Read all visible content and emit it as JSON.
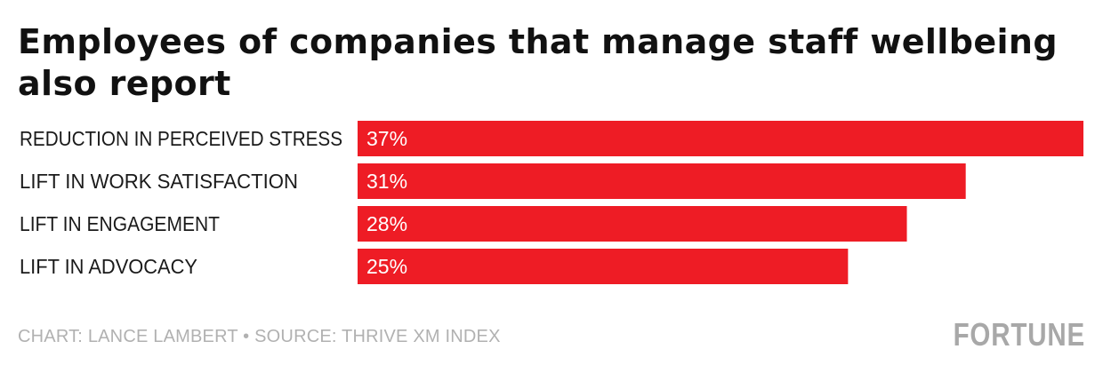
{
  "title": "Employees of companies that manage staff wellbeing also report",
  "footer": "CHART: LANCE LAMBERT • SOURCE: THRIVE XM INDEX",
  "logo_text": "FORTUNE",
  "colors": {
    "bar": "#ee1c25",
    "label": "#1a1a1a",
    "value": "#ffffff"
  },
  "chart_data": {
    "type": "bar",
    "orientation": "horizontal",
    "categories": [
      "REDUCTION IN PERCEIVED STRESS",
      "LIFT IN WORK SATISFACTION",
      "LIFT IN ENGAGEMENT",
      "LIFT IN ADVOCACY"
    ],
    "values": [
      37,
      31,
      28,
      25
    ],
    "value_labels": [
      "37%",
      "31%",
      "28%",
      "25%"
    ],
    "xlim": [
      0,
      37
    ],
    "grid": false,
    "legend": "none"
  }
}
